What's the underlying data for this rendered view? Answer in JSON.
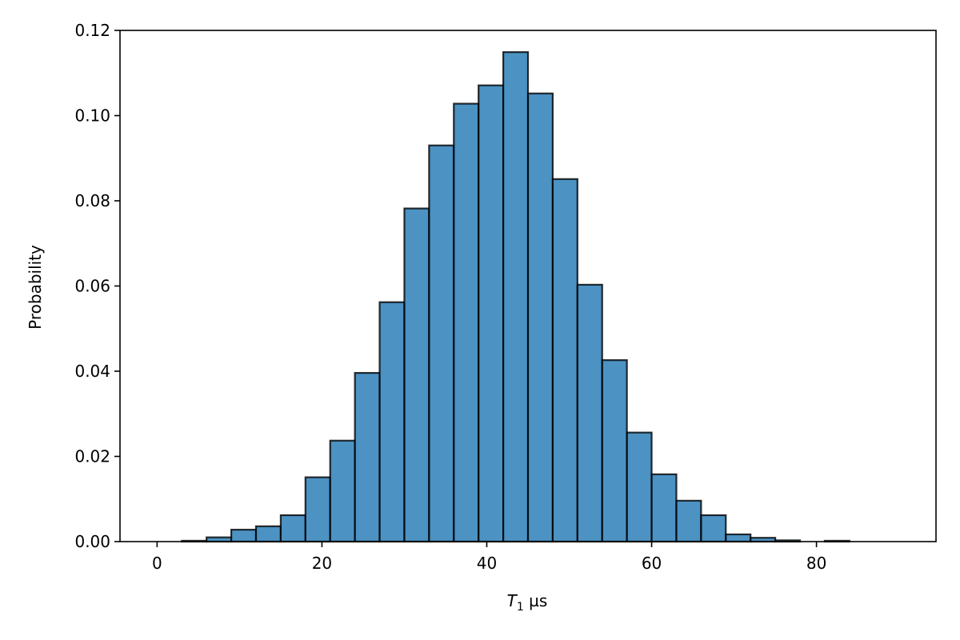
{
  "chart_data": {
    "type": "bar",
    "title": "",
    "xlabel_symbol": "T",
    "xlabel_subscript": "1",
    "xlabel_unit": " µs",
    "ylabel": "Probability",
    "bin_width": 3,
    "bins": [
      {
        "x0": 3,
        "x1": 6,
        "value": 0.0002
      },
      {
        "x0": 6,
        "x1": 9,
        "value": 0.001
      },
      {
        "x0": 9,
        "x1": 12,
        "value": 0.0028
      },
      {
        "x0": 12,
        "x1": 15,
        "value": 0.0036
      },
      {
        "x0": 15,
        "x1": 18,
        "value": 0.0062
      },
      {
        "x0": 18,
        "x1": 21,
        "value": 0.0151
      },
      {
        "x0": 21,
        "x1": 24,
        "value": 0.0237
      },
      {
        "x0": 24,
        "x1": 27,
        "value": 0.0396
      },
      {
        "x0": 27,
        "x1": 30,
        "value": 0.0562
      },
      {
        "x0": 30,
        "x1": 33,
        "value": 0.0782
      },
      {
        "x0": 33,
        "x1": 36,
        "value": 0.093
      },
      {
        "x0": 36,
        "x1": 39,
        "value": 0.1028
      },
      {
        "x0": 39,
        "x1": 42,
        "value": 0.1071
      },
      {
        "x0": 42,
        "x1": 45,
        "value": 0.1149
      },
      {
        "x0": 45,
        "x1": 48,
        "value": 0.1052
      },
      {
        "x0": 48,
        "x1": 51,
        "value": 0.0851
      },
      {
        "x0": 51,
        "x1": 54,
        "value": 0.0603
      },
      {
        "x0": 54,
        "x1": 57,
        "value": 0.0426
      },
      {
        "x0": 57,
        "x1": 60,
        "value": 0.0256
      },
      {
        "x0": 60,
        "x1": 63,
        "value": 0.0158
      },
      {
        "x0": 63,
        "x1": 66,
        "value": 0.0096
      },
      {
        "x0": 66,
        "x1": 69,
        "value": 0.0062
      },
      {
        "x0": 69,
        "x1": 72,
        "value": 0.0017
      },
      {
        "x0": 72,
        "x1": 75,
        "value": 0.0009
      },
      {
        "x0": 75,
        "x1": 78,
        "value": 0.0003
      },
      {
        "x0": 78,
        "x1": 81,
        "value": 0.0
      },
      {
        "x0": 81,
        "x1": 84,
        "value": 0.0002
      },
      {
        "x0": 84,
        "x1": 87,
        "value": 0.0
      },
      {
        "x0": 87,
        "x1": 90,
        "value": 0.0
      }
    ],
    "xlim": [
      -4.5,
      94.5
    ],
    "ylim": [
      0,
      0.12
    ],
    "xticks": [
      0,
      20,
      40,
      60,
      80
    ],
    "xtick_labels": [
      "0",
      "20",
      "40",
      "60",
      "80"
    ],
    "yticks": [
      0,
      0.02,
      0.04,
      0.06,
      0.08,
      0.1,
      0.12
    ],
    "ytick_labels": [
      "0.00",
      "0.02",
      "0.04",
      "0.06",
      "0.08",
      "0.10",
      "0.12"
    ],
    "grid": false,
    "colors": {
      "bar_fill": "#1f77b4",
      "bar_edge": "#000000",
      "axis": "#000000"
    }
  }
}
